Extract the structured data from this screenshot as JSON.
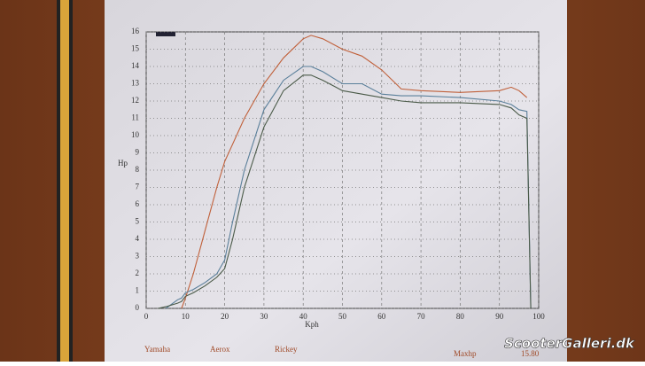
{
  "chart_data": {
    "type": "line",
    "x_label": "Kph",
    "y_label": "Hp",
    "x": [
      3,
      5,
      8,
      9,
      10,
      12,
      15,
      18,
      20,
      22,
      25,
      30,
      35,
      40,
      42,
      45,
      50,
      55,
      60,
      65,
      70,
      80,
      90,
      93,
      95,
      97,
      98
    ],
    "series": [
      {
        "color": "#c0603a",
        "values": [
          null,
          null,
          null,
          0,
          0.6,
          2,
          4.5,
          7,
          8.5,
          9.5,
          11,
          13,
          14.5,
          15.6,
          15.8,
          15.6,
          15,
          14.6,
          13.8,
          12.7,
          12.6,
          12.5,
          12.6,
          12.8,
          12.6,
          12.2,
          null
        ]
      },
      {
        "color": "#5a7f9a",
        "values": [
          null,
          0,
          0.5,
          0.6,
          0.9,
          1.1,
          1.5,
          2,
          2.8,
          5,
          8,
          11.5,
          13.2,
          14,
          14,
          13.7,
          13,
          13,
          12.4,
          12.3,
          12.3,
          12.2,
          12,
          11.8,
          11.5,
          11.4,
          0
        ]
      },
      {
        "color": "#4a5a48",
        "values": [
          0,
          0.1,
          0.3,
          0.4,
          0.7,
          0.9,
          1.3,
          1.8,
          2.3,
          4,
          7,
          10.5,
          12.6,
          13.5,
          13.5,
          13.2,
          12.6,
          12.4,
          12.2,
          12,
          11.9,
          11.9,
          11.8,
          11.6,
          11.2,
          11,
          0
        ]
      }
    ],
    "xlim": [
      0,
      100
    ],
    "xticks": [
      0,
      10,
      20,
      30,
      40,
      50,
      60,
      70,
      80,
      90,
      100
    ],
    "ylim": [
      0,
      16
    ],
    "yticks": [
      0,
      1,
      2,
      3,
      4,
      5,
      6,
      7,
      8,
      9,
      10,
      11,
      12,
      13,
      14,
      15,
      16
    ],
    "grid": true,
    "footer": {
      "make": "Yamaha",
      "model": "Aerox",
      "owner": "Rickey",
      "maxhp_label": "Maxhp",
      "maxhp_value": "15.80"
    },
    "watermark": "ScooterGalleri.dk"
  }
}
